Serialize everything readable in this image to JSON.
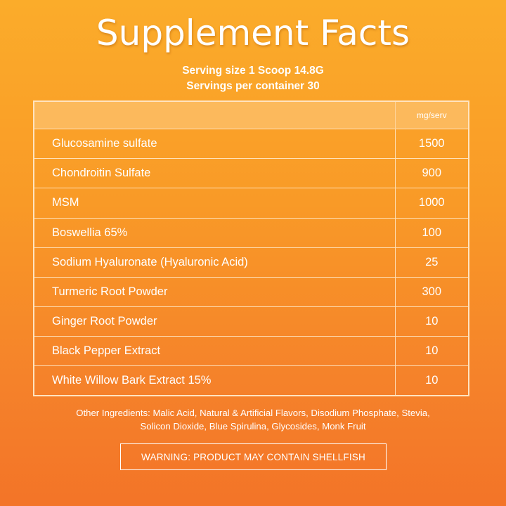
{
  "title": "Supplement Facts",
  "serving": {
    "size": "Serving size 1 Scoop 14.8G",
    "per_container": "Servings per container 30"
  },
  "table": {
    "unit_header": "mg/serv",
    "rows": [
      {
        "name": "Glucosamine sulfate",
        "value": "1500"
      },
      {
        "name": "Chondroitin Sulfate",
        "value": "900"
      },
      {
        "name": "MSM",
        "value": "1000"
      },
      {
        "name": "Boswellia 65%",
        "value": "100"
      },
      {
        "name": "Sodium Hyaluronate (Hyaluronic Acid)",
        "value": "25"
      },
      {
        "name": "Turmeric Root Powder",
        "value": "300"
      },
      {
        "name": "Ginger Root Powder",
        "value": "10"
      },
      {
        "name": "Black Pepper Extract",
        "value": "10"
      },
      {
        "name": "White Willow Bark Extract 15%",
        "value": "10"
      }
    ]
  },
  "other_ingredients": {
    "line1": "Other Ingredients: Malic Acid, Natural & Artificial Flavors, Disodium Phosphate, Stevia,",
    "line2": "Solicon Dioxide, Blue Spirulina, Glycosides, Monk Fruit"
  },
  "warning": "WARNING: PRODUCT MAY CONTAIN SHELLFISH",
  "colors": {
    "background_top": "#fbac2a",
    "background_bottom": "#f37428",
    "text": "#ffffff"
  }
}
